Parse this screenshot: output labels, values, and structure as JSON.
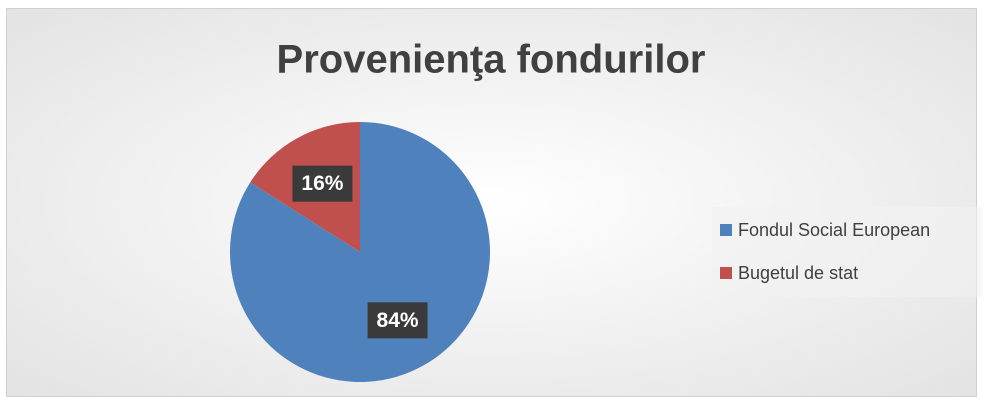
{
  "chart_data": {
    "type": "pie",
    "title": "Provenienţa fondurilor",
    "categories": [
      "Fondul Social European",
      "Bugetul de stat"
    ],
    "values": [
      84,
      16
    ],
    "value_labels": [
      "84%",
      "16%"
    ],
    "colors": [
      "#4f81bd",
      "#c0504d"
    ],
    "legend": "right"
  }
}
